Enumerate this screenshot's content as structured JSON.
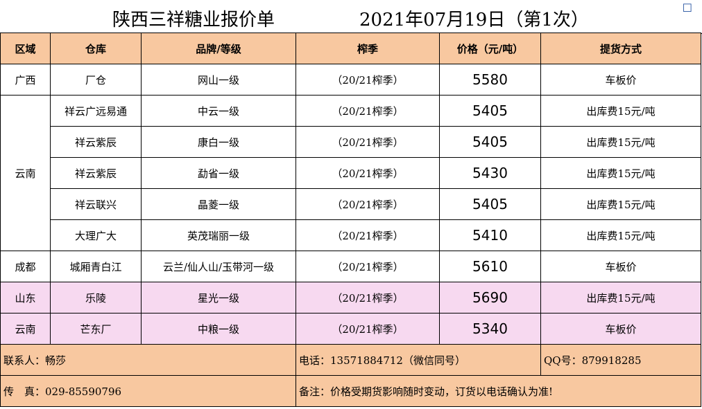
{
  "title": {
    "main": "陕西三祥糖业报价单",
    "date": "2021年07月19日（第1次）",
    "corner": "☐"
  },
  "headers": {
    "region": "区域",
    "warehouse": "仓库",
    "brand": "品牌/等级",
    "season": "榨季",
    "price": "价格（元/吨）",
    "delivery": "提货方式"
  },
  "rows": [
    {
      "region": "广西",
      "warehouse": "厂仓",
      "brand": "网山一级",
      "season": "（20/21榨季）",
      "price": "5580",
      "delivery": "车板价"
    },
    {
      "region": "云南",
      "warehouse": "祥云广远易通",
      "brand": "中云一级",
      "season": "（20/21榨季）",
      "price": "5405",
      "delivery": "出库费15元/吨"
    },
    {
      "region": "",
      "warehouse": "祥云紫辰",
      "brand": "康白一级",
      "season": "（20/21榨季）",
      "price": "5405",
      "delivery": "出库费15元/吨"
    },
    {
      "region": "",
      "warehouse": "祥云紫辰",
      "brand": "勐省一级",
      "season": "（20/21榨季）",
      "price": "5430",
      "delivery": "出库费15元/吨"
    },
    {
      "region": "",
      "warehouse": "祥云联兴",
      "brand": "晶菱一级",
      "season": "（20/21榨季）",
      "price": "5405",
      "delivery": "出库费15元/吨"
    },
    {
      "region": "",
      "warehouse": "大理广大",
      "brand": "英茂瑞丽一级",
      "season": "（20/21榨季）",
      "price": "5410",
      "delivery": "出库费15元/吨"
    },
    {
      "region": "成都",
      "warehouse": "城厢青白江",
      "brand": "云兰/仙人山/玉带河一级",
      "season": "（20/21榨季）",
      "price": "5610",
      "delivery": "车板价"
    },
    {
      "region": "山东",
      "warehouse": "乐陵",
      "brand": "星光一级",
      "season": "（20/21榨季）",
      "price": "5690",
      "delivery": "出库费15元/吨"
    },
    {
      "region": "云南",
      "warehouse": "芒东厂",
      "brand": "中粮一级",
      "season": "（20/21榨季）",
      "price": "5340",
      "delivery": "车板价"
    }
  ],
  "footer": {
    "contact": "联系人：畅莎",
    "phone": "电话：13571884712（微信同号）",
    "qq": "QQ号：879918285",
    "fax": "传　真：029-85590796",
    "note": "备注：价格受期货影响随时变动，订货以电话确认为准!"
  }
}
